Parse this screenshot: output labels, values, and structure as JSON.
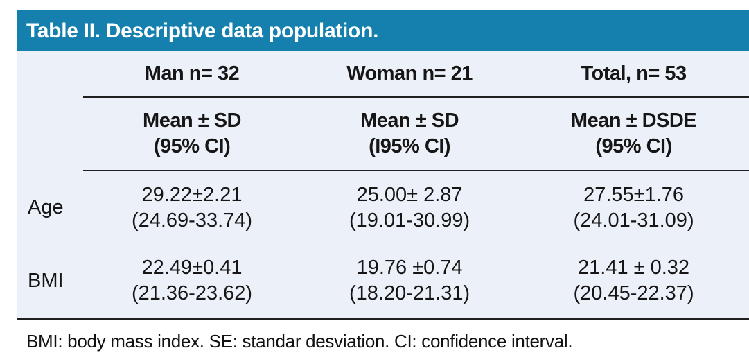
{
  "title": "Table II. Descriptive data population.",
  "colors": {
    "header_bg": "#1580ae",
    "body_bg": "#ecf0f8",
    "rule": "#1f1f1f",
    "title_text": "#ffffff"
  },
  "table": {
    "column_headers": [
      "Man n= 32",
      "Woman n= 21",
      "Total, n= 53"
    ],
    "subheaders": [
      {
        "line1": "Mean ± SD",
        "line2": "(95% CI)"
      },
      {
        "line1": "Mean ± SD",
        "line2": "(I95% CI)"
      },
      {
        "line1": "Mean ± DSDE",
        "line2": "(95% CI)"
      }
    ],
    "rows": [
      {
        "label": "Age",
        "cells": [
          {
            "mean": "29.22±2.21",
            "ci": "(24.69-33.74)"
          },
          {
            "mean": "25.00± 2.87",
            "ci": "(19.01-30.99)"
          },
          {
            "mean": "27.55±1.76",
            "ci": "(24.01-31.09)"
          }
        ]
      },
      {
        "label": "BMI",
        "cells": [
          {
            "mean": "22.49±0.41",
            "ci": "(21.36-23.62)"
          },
          {
            "mean": "19.76 ±0.74",
            "ci": "(18.20-21.31)"
          },
          {
            "mean": "21.41 ± 0.32",
            "ci": "(20.45-22.37)"
          }
        ]
      }
    ]
  },
  "footnote": "BMI: body mass index. SE: standar desviation. CI: confidence interval."
}
